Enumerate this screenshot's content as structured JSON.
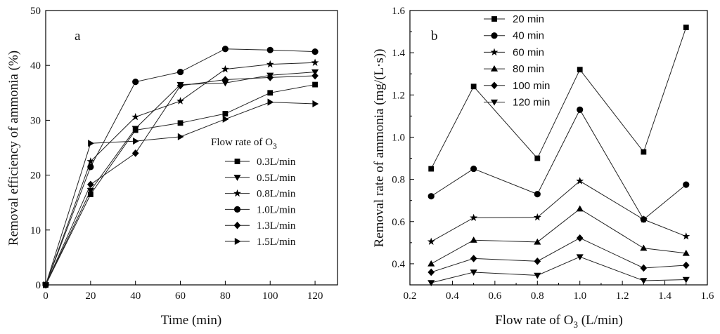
{
  "chart_data": [
    {
      "type": "line",
      "panel_label": "a",
      "xlabel": "Time (min)",
      "ylabel": "Removal efficiency of ammonia (%)",
      "xlim": [
        0,
        130
      ],
      "ylim": [
        0,
        50
      ],
      "xticks": [
        0,
        20,
        40,
        60,
        80,
        100,
        120
      ],
      "yticks": [
        0,
        10,
        20,
        30,
        40,
        50
      ],
      "legend_title": "Flow rate of O",
      "legend_title_sub": "3",
      "legend_position": "center-right",
      "x": [
        0,
        20,
        40,
        60,
        80,
        100,
        120
      ],
      "series": [
        {
          "name": "0.3L/min",
          "marker": "square",
          "values": [
            0,
            16.5,
            28.2,
            29.5,
            31.2,
            35.0,
            36.5
          ]
        },
        {
          "name": "0.5L/min",
          "marker": "triangle-down",
          "values": [
            0,
            17.2,
            28.5,
            36.5,
            36.8,
            38.2,
            38.8
          ]
        },
        {
          "name": "0.8L/min",
          "marker": "star",
          "values": [
            0,
            22.5,
            30.6,
            33.5,
            39.3,
            40.2,
            40.5
          ]
        },
        {
          "name": "1.0L/min",
          "marker": "circle",
          "values": [
            0,
            21.5,
            37.0,
            38.8,
            43.0,
            42.8,
            42.5
          ]
        },
        {
          "name": "1.3L/min",
          "marker": "diamond",
          "values": [
            0,
            18.3,
            24.0,
            36.3,
            37.4,
            37.8,
            38.1
          ]
        },
        {
          "name": "1.5L/min",
          "marker": "triangle-right",
          "values": [
            0,
            25.8,
            26.2,
            27.0,
            30.2,
            33.3,
            33.0
          ]
        }
      ]
    },
    {
      "type": "line",
      "panel_label": "b",
      "xlabel": "Flow rate of O",
      "xlabel_sub": "3",
      "xlabel_tail": " (L/min)",
      "ylabel": "Removal rate of ammonia (mg/(L·s))",
      "xlim": [
        0.2,
        1.6
      ],
      "ylim": [
        0.3,
        1.6
      ],
      "xticks": [
        0.2,
        0.4,
        0.6,
        0.8,
        1.0,
        1.2,
        1.4,
        1.6
      ],
      "yticks": [
        0.4,
        0.6,
        0.8,
        1.0,
        1.2,
        1.4,
        1.6
      ],
      "legend_position": "top-left",
      "x": [
        0.3,
        0.5,
        0.8,
        1.0,
        1.3,
        1.5
      ],
      "series": [
        {
          "name": "20 min",
          "marker": "square",
          "values": [
            0.85,
            1.24,
            0.9,
            1.32,
            0.93,
            1.52
          ]
        },
        {
          "name": "40 min",
          "marker": "circle",
          "values": [
            0.72,
            0.85,
            0.73,
            1.13,
            0.61,
            0.775
          ]
        },
        {
          "name": "60 min",
          "marker": "star",
          "values": [
            0.505,
            0.618,
            0.62,
            0.792,
            0.61,
            0.53
          ]
        },
        {
          "name": "80 min",
          "marker": "triangle-up",
          "values": [
            0.4,
            0.512,
            0.503,
            0.66,
            0.474,
            0.45
          ]
        },
        {
          "name": "100 min",
          "marker": "diamond",
          "values": [
            0.36,
            0.425,
            0.412,
            0.522,
            0.38,
            0.393
          ]
        },
        {
          "name": "120 min",
          "marker": "triangle-down",
          "values": [
            0.31,
            0.36,
            0.345,
            0.433,
            0.32,
            0.325
          ]
        }
      ]
    }
  ]
}
